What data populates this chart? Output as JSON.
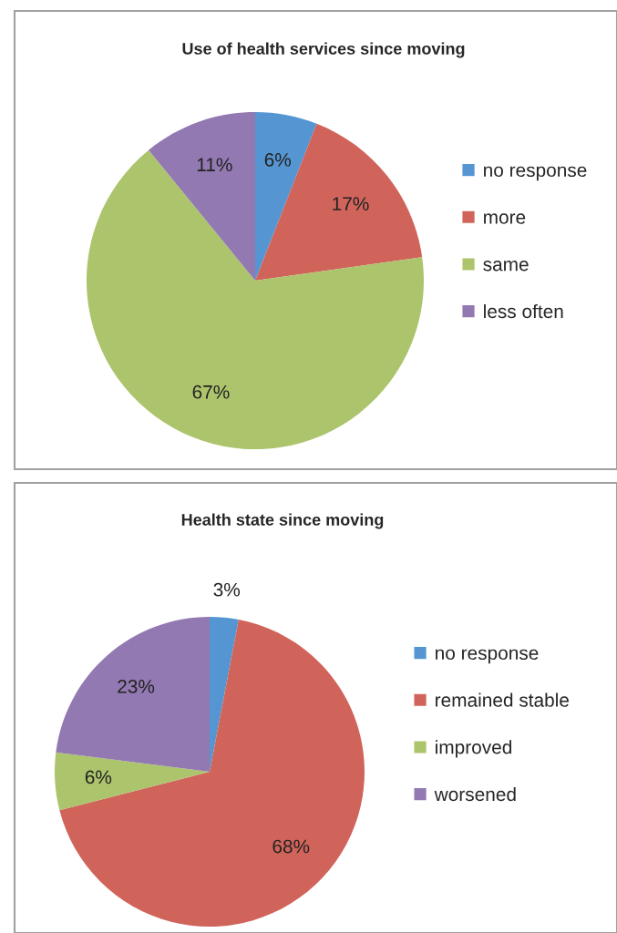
{
  "chart_data": [
    {
      "type": "pie",
      "title": "Use of health services since moving",
      "categories": [
        "no response",
        "more",
        "same",
        "less often"
      ],
      "values": [
        6,
        17,
        67,
        11
      ],
      "value_labels": [
        "6%",
        "17%",
        "67%",
        "11%"
      ],
      "colors": [
        "#5596d2",
        "#d0645b",
        "#acc46c",
        "#9379b2"
      ],
      "legend": "right"
    },
    {
      "type": "pie",
      "title": "Health state since moving",
      "categories": [
        "no response",
        "remained stable",
        "improved",
        "worsened"
      ],
      "values": [
        3,
        68,
        6,
        23
      ],
      "value_labels": [
        "3%",
        "68%",
        "6%",
        "23%"
      ],
      "colors": [
        "#5596d2",
        "#d0645b",
        "#acc46c",
        "#9379b2"
      ],
      "legend": "right"
    }
  ]
}
